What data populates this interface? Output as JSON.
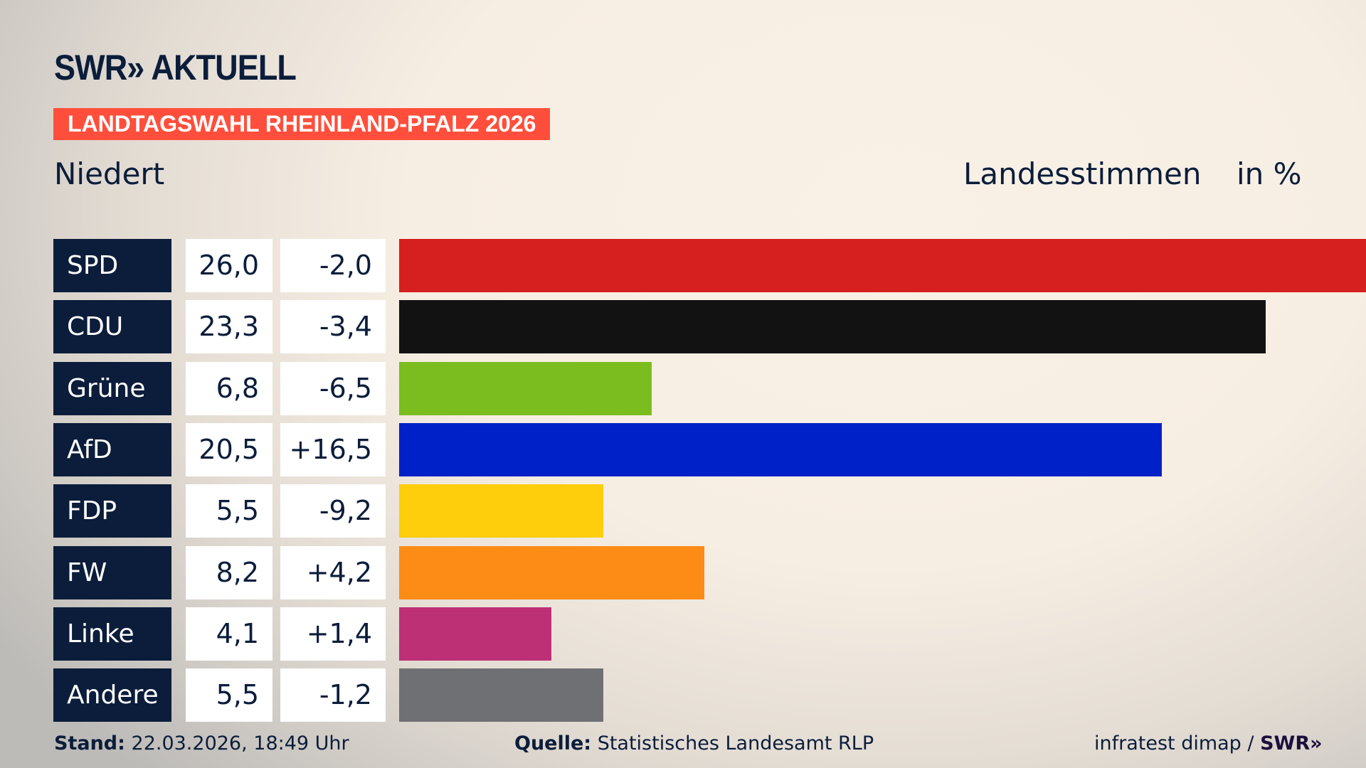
{
  "header": {
    "logo": "SWR» AKTUELL",
    "banner": "LANDTAGSWAHL RHEINLAND-PFALZ 2026",
    "location": "Niedert",
    "measure": "Landesstimmen",
    "unit": "in %"
  },
  "chart_data": {
    "type": "bar",
    "orientation": "horizontal",
    "categories": [
      "SPD",
      "CDU",
      "Grüne",
      "AfD",
      "FDP",
      "FW",
      "Linke",
      "Andere"
    ],
    "values": [
      26.0,
      23.3,
      6.8,
      20.5,
      5.5,
      8.2,
      4.1,
      5.5
    ],
    "value_labels": [
      "26,0",
      "23,3",
      "6,8",
      "20,5",
      "5,5",
      "8,2",
      "4,1",
      "5,5"
    ],
    "diff_labels": [
      "-2,0",
      "-3,4",
      "-6,5",
      "+16,5",
      "-9,2",
      "+4,2",
      "+1,4",
      "-1,2"
    ],
    "diffs": [
      -2.0,
      -3.4,
      -6.5,
      16.5,
      -9.2,
      4.2,
      1.4,
      -1.2
    ],
    "colors": [
      "#d61f1f",
      "#121212",
      "#7bbd1e",
      "#0021c8",
      "#fecd0b",
      "#fd8c17",
      "#bd3075",
      "#6f7073"
    ],
    "xlim": [
      0,
      26.0
    ],
    "grid": false
  },
  "footer": {
    "stand_label": "Stand:",
    "stand_value": "22.03.2026, 18:49 Uhr",
    "source_label": "Quelle:",
    "source_value": "Statistisches Landesamt RLP",
    "credit": "infratest dimap /",
    "credit_logo": "SWR»"
  }
}
